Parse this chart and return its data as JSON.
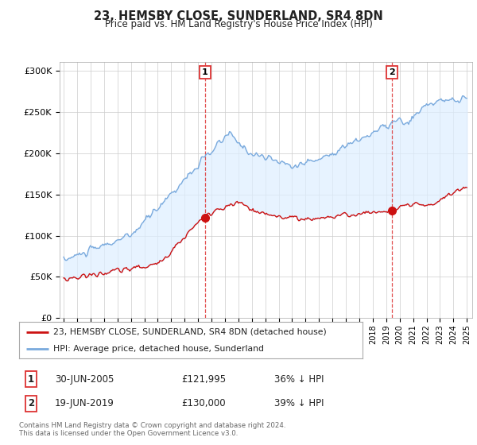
{
  "title": "23, HEMSBY CLOSE, SUNDERLAND, SR4 8DN",
  "subtitle": "Price paid vs. HM Land Registry's House Price Index (HPI)",
  "background_color": "#ffffff",
  "grid_color": "#cccccc",
  "sale1_date": "30-JUN-2005",
  "sale1_price": 121995,
  "sale1_hpi": "36% ↓ HPI",
  "sale2_date": "19-JUN-2019",
  "sale2_price": 130000,
  "sale2_hpi": "39% ↓ HPI",
  "legend_line1": "23, HEMSBY CLOSE, SUNDERLAND, SR4 8DN (detached house)",
  "legend_line2": "HPI: Average price, detached house, Sunderland",
  "footer": "Contains HM Land Registry data © Crown copyright and database right 2024.\nThis data is licensed under the Open Government Licence v3.0.",
  "hpi_color": "#7aaadd",
  "price_color": "#cc1111",
  "fill_color": "#ddeeff",
  "vline_color": "#dd3333",
  "sale1_year": 2005.5,
  "sale2_year": 2019.45,
  "ylim_max": 310000,
  "ylim_min": 0,
  "hpi_seed": 10,
  "price_seed": 20,
  "figwidth": 6.0,
  "figheight": 5.6,
  "dpi": 100
}
